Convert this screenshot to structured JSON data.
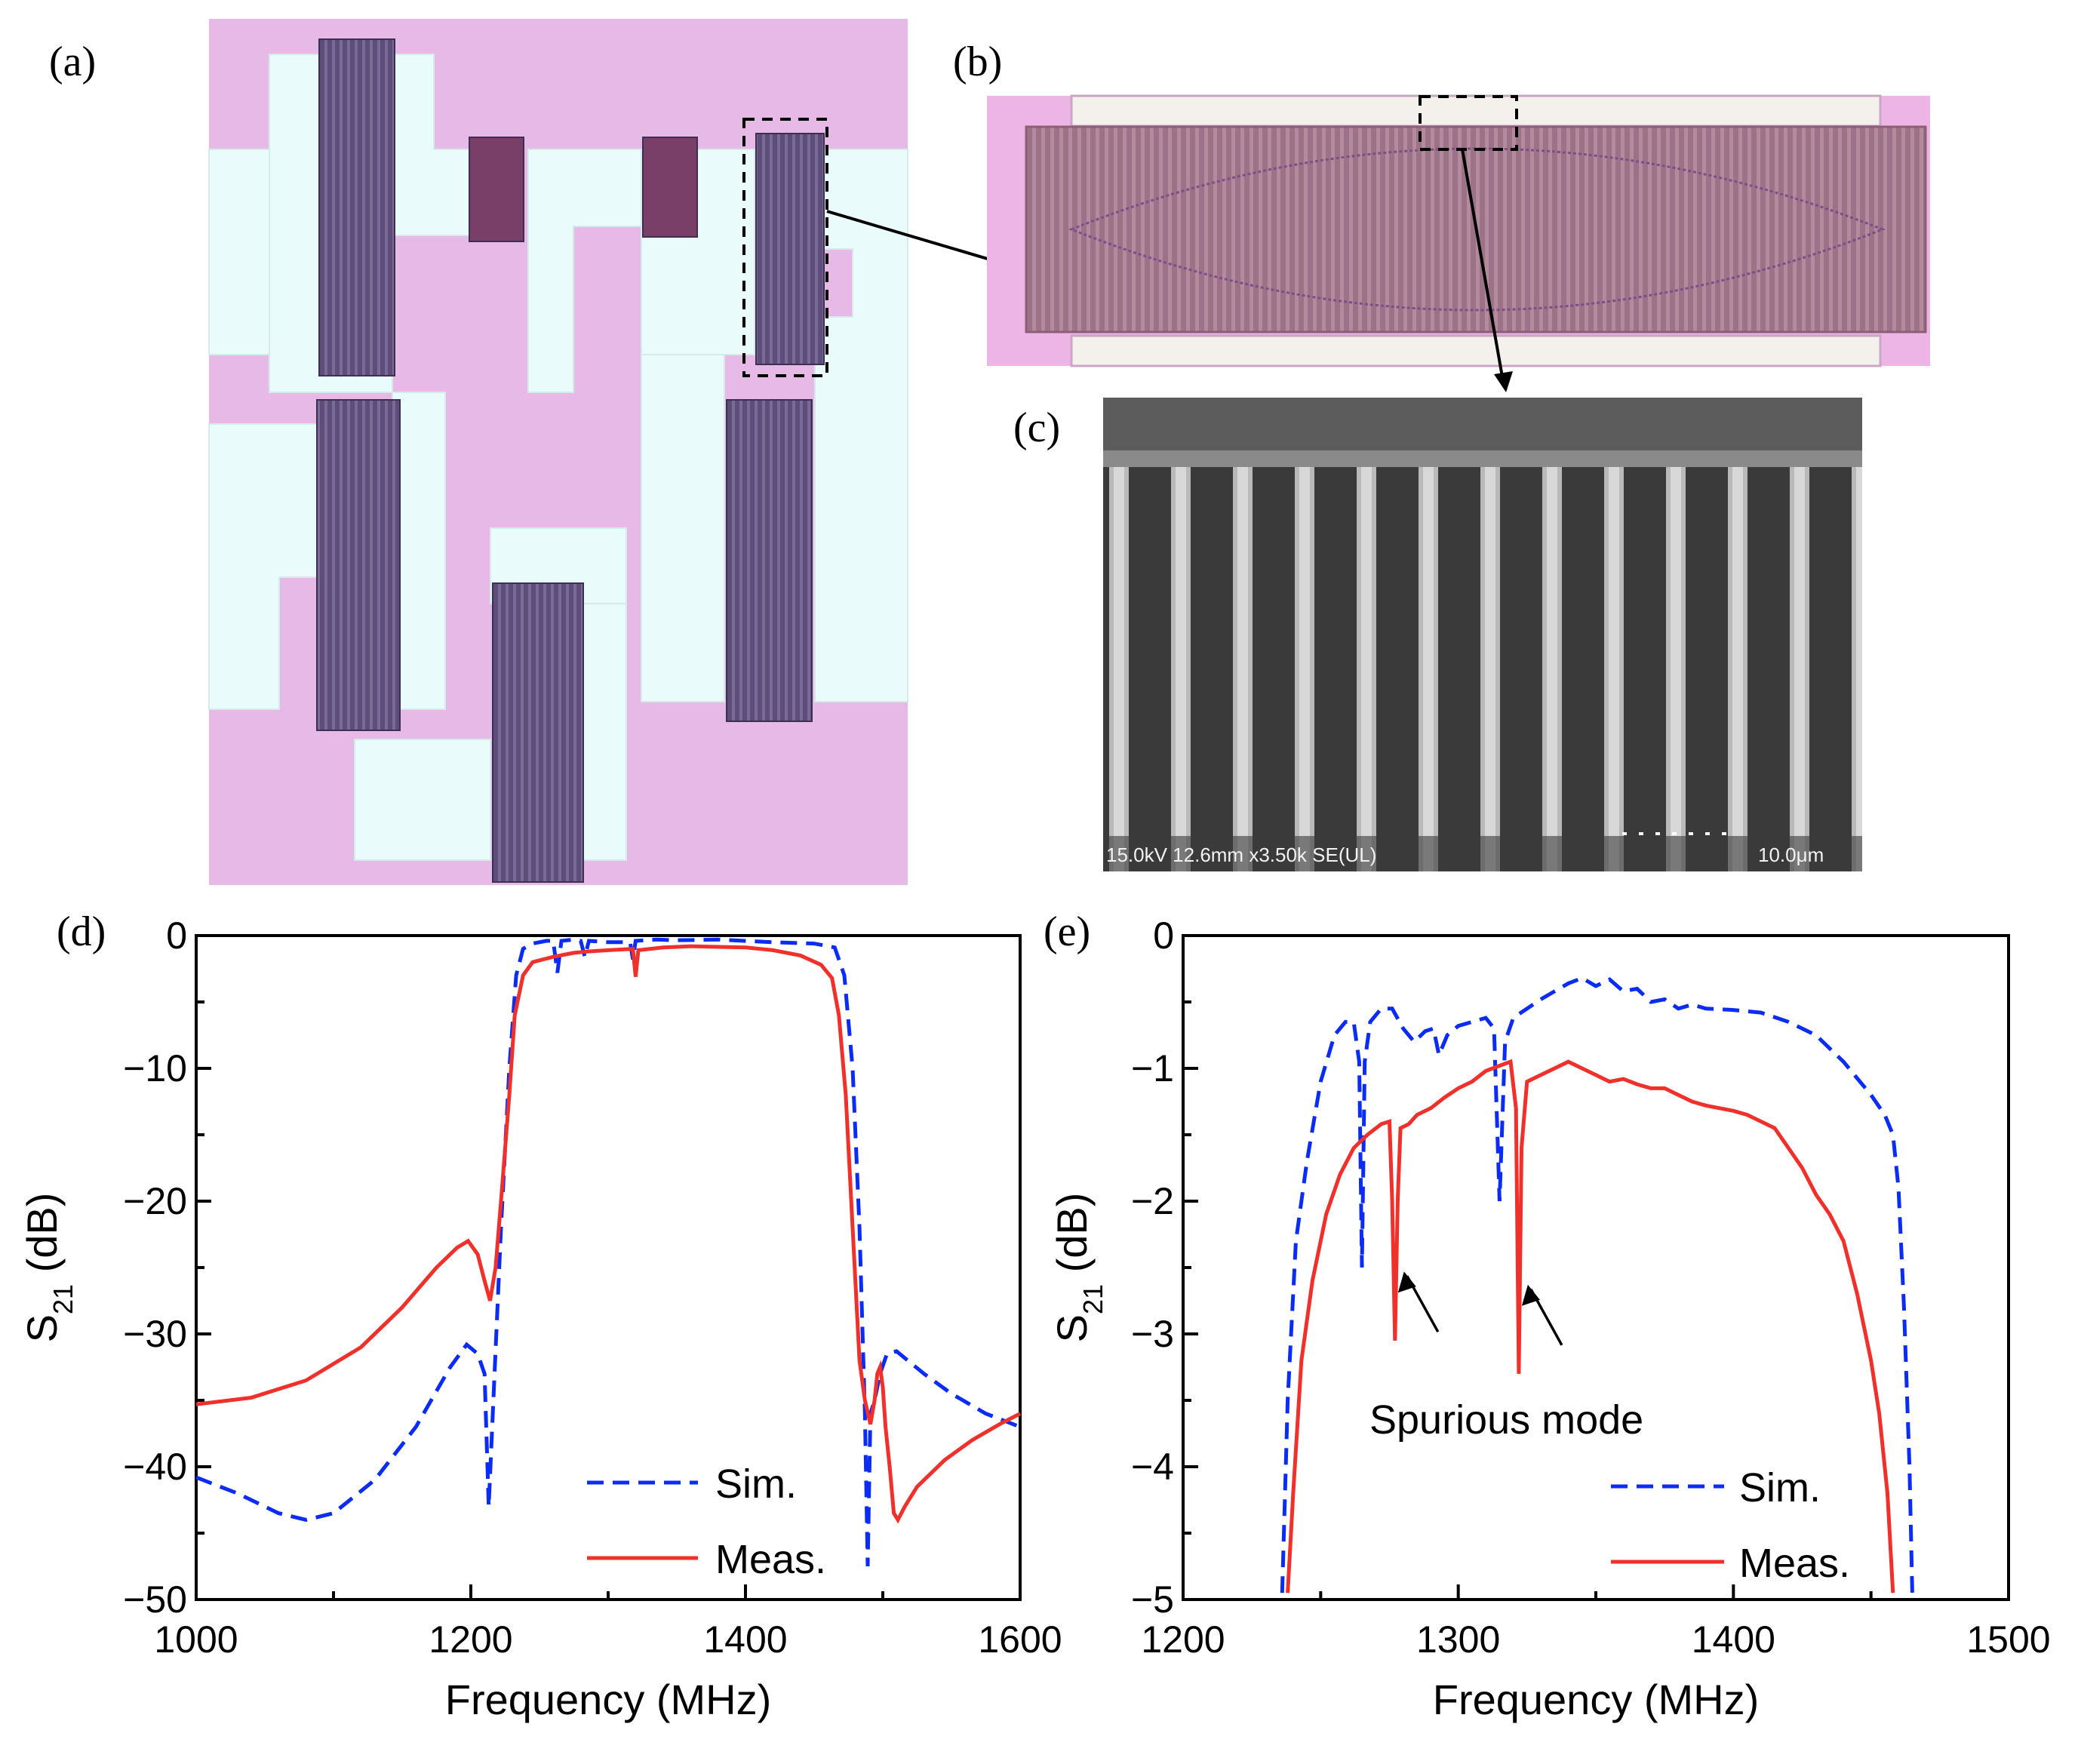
{
  "panels": {
    "a": "(a)",
    "b": "(b)",
    "c": "(c)",
    "d": "(d)",
    "e": "(e)"
  },
  "sem": {
    "info": "15.0kV 12.6mm x3.50k SE(UL)",
    "scale": "10.0μm"
  },
  "colors": {
    "sim": "#0a2cf5",
    "meas": "#f0302a",
    "chip_bg": "#e6b8e4",
    "pad": "#e9fbfb",
    "resonator": "#5d4a78"
  },
  "chart_data": [
    {
      "id": "d",
      "type": "line",
      "xlabel": "Frequency (MHz)",
      "ylabel_main": "S",
      "ylabel_sub": "21",
      "ylabel_unit": " (dB)",
      "xlim": [
        1000,
        1600
      ],
      "ylim": [
        -50,
        0
      ],
      "xticks": [
        1000,
        1200,
        1400,
        1600
      ],
      "xtick_labels": [
        "1000",
        "1200",
        "1400",
        "1600"
      ],
      "yticks": [
        0,
        -10,
        -20,
        -30,
        -40,
        -50
      ],
      "ytick_labels": [
        "0",
        "−10",
        "−20",
        "−30",
        "−40",
        "−50"
      ],
      "legend_position": "bottom-right",
      "series": [
        {
          "name": "Sim.",
          "style": "dashed",
          "color": "#0a2cf5",
          "points": [
            [
              1000,
              -40.8
            ],
            [
              1030,
              -42
            ],
            [
              1060,
              -43.5
            ],
            [
              1080,
              -44
            ],
            [
              1100,
              -43.5
            ],
            [
              1130,
              -41
            ],
            [
              1160,
              -37
            ],
            [
              1185,
              -32.5
            ],
            [
              1197,
              -30.8
            ],
            [
              1205,
              -31.5
            ],
            [
              1210,
              -33
            ],
            [
              1213,
              -43
            ],
            [
              1216,
              -36
            ],
            [
              1222,
              -22
            ],
            [
              1228,
              -10
            ],
            [
              1233,
              -3
            ],
            [
              1238,
              -1
            ],
            [
              1245,
              -0.6
            ],
            [
              1255,
              -0.4
            ],
            [
              1260,
              -0.4
            ],
            [
              1263,
              -2.8
            ],
            [
              1266,
              -0.4
            ],
            [
              1275,
              -0.3
            ],
            [
              1280,
              -0.4
            ],
            [
              1283,
              -1.6
            ],
            [
              1286,
              -0.4
            ],
            [
              1300,
              -0.5
            ],
            [
              1316,
              -0.5
            ],
            [
              1318,
              -1.8
            ],
            [
              1320,
              -0.4
            ],
            [
              1335,
              -0.3
            ],
            [
              1350,
              -0.35
            ],
            [
              1380,
              -0.3
            ],
            [
              1420,
              -0.5
            ],
            [
              1450,
              -0.6
            ],
            [
              1465,
              -0.9
            ],
            [
              1472,
              -3
            ],
            [
              1478,
              -10
            ],
            [
              1483,
              -22
            ],
            [
              1487,
              -36
            ],
            [
              1489,
              -47.5
            ],
            [
              1491,
              -36
            ],
            [
              1494,
              -35
            ],
            [
              1498,
              -33
            ],
            [
              1503,
              -31.5
            ],
            [
              1510,
              -31.3
            ],
            [
              1530,
              -33
            ],
            [
              1550,
              -34.5
            ],
            [
              1575,
              -36
            ],
            [
              1600,
              -37
            ]
          ]
        },
        {
          "name": "Meas.",
          "style": "solid",
          "color": "#f0302a",
          "points": [
            [
              1000,
              -35.3
            ],
            [
              1040,
              -34.8
            ],
            [
              1080,
              -33.5
            ],
            [
              1120,
              -31
            ],
            [
              1150,
              -28
            ],
            [
              1175,
              -25
            ],
            [
              1190,
              -23.5
            ],
            [
              1198,
              -23
            ],
            [
              1205,
              -24
            ],
            [
              1210,
              -26
            ],
            [
              1214,
              -27.5
            ],
            [
              1218,
              -25
            ],
            [
              1222,
              -20
            ],
            [
              1228,
              -12
            ],
            [
              1232,
              -6
            ],
            [
              1238,
              -3
            ],
            [
              1245,
              -2
            ],
            [
              1260,
              -1.6
            ],
            [
              1275,
              -1.3
            ],
            [
              1285,
              -1.2
            ],
            [
              1300,
              -1.1
            ],
            [
              1318,
              -1.0
            ],
            [
              1320,
              -3.1
            ],
            [
              1322,
              -1.1
            ],
            [
              1340,
              -0.9
            ],
            [
              1360,
              -0.8
            ],
            [
              1380,
              -0.85
            ],
            [
              1400,
              -0.9
            ],
            [
              1420,
              -1.1
            ],
            [
              1440,
              -1.5
            ],
            [
              1455,
              -2.2
            ],
            [
              1463,
              -3.2
            ],
            [
              1468,
              -6
            ],
            [
              1473,
              -12
            ],
            [
              1478,
              -22
            ],
            [
              1483,
              -32
            ],
            [
              1487,
              -35
            ],
            [
              1491,
              -36.8
            ],
            [
              1494,
              -35
            ],
            [
              1496,
              -33
            ],
            [
              1498,
              -32.5
            ],
            [
              1500,
              -34
            ],
            [
              1502,
              -37
            ],
            [
              1505,
              -40
            ],
            [
              1508,
              -43.5
            ],
            [
              1511,
              -44
            ],
            [
              1516,
              -43
            ],
            [
              1525,
              -41.5
            ],
            [
              1545,
              -39.5
            ],
            [
              1565,
              -38
            ],
            [
              1585,
              -36.8
            ],
            [
              1600,
              -36
            ]
          ]
        }
      ]
    },
    {
      "id": "e",
      "type": "line",
      "xlabel": "Frequency (MHz)",
      "ylabel_main": "S",
      "ylabel_sub": "21",
      "ylabel_unit": " (dB)",
      "xlim": [
        1200,
        1500
      ],
      "ylim": [
        -5,
        0
      ],
      "xticks": [
        1200,
        1300,
        1400,
        1500
      ],
      "xtick_labels": [
        "1200",
        "1300",
        "1400",
        "1500"
      ],
      "yticks": [
        0,
        -1,
        -2,
        -3,
        -4,
        -5
      ],
      "ytick_labels": [
        "0",
        "−1",
        "−2",
        "−3",
        "−4",
        "−5"
      ],
      "legend_position": "bottom-right",
      "annotation": "Spurious mode",
      "annotation_arrows_at": [
        [
          1277,
          -2.7
        ],
        [
          1322,
          -2.8
        ]
      ],
      "series": [
        {
          "name": "Sim.",
          "style": "dashed",
          "color": "#0a2cf5",
          "points": [
            [
              1236,
              -4.95
            ],
            [
              1238,
              -3.5
            ],
            [
              1241,
              -2.3
            ],
            [
              1245,
              -1.7
            ],
            [
              1250,
              -1.1
            ],
            [
              1255,
              -0.75
            ],
            [
              1259,
              -0.65
            ],
            [
              1262,
              -0.65
            ],
            [
              1264,
              -0.95
            ],
            [
              1265,
              -2.5
            ],
            [
              1266,
              -0.95
            ],
            [
              1268,
              -0.65
            ],
            [
              1272,
              -0.55
            ],
            [
              1276,
              -0.55
            ],
            [
              1280,
              -0.7
            ],
            [
              1284,
              -0.8
            ],
            [
              1288,
              -0.72
            ],
            [
              1291,
              -0.7
            ],
            [
              1293,
              -0.9
            ],
            [
              1296,
              -0.75
            ],
            [
              1300,
              -0.68
            ],
            [
              1305,
              -0.65
            ],
            [
              1310,
              -0.62
            ],
            [
              1313,
              -0.7
            ],
            [
              1315,
              -2.0
            ],
            [
              1317,
              -0.8
            ],
            [
              1320,
              -0.62
            ],
            [
              1325,
              -0.55
            ],
            [
              1330,
              -0.48
            ],
            [
              1335,
              -0.42
            ],
            [
              1340,
              -0.36
            ],
            [
              1345,
              -0.32
            ],
            [
              1350,
              -0.38
            ],
            [
              1355,
              -0.33
            ],
            [
              1360,
              -0.42
            ],
            [
              1365,
              -0.4
            ],
            [
              1370,
              -0.5
            ],
            [
              1375,
              -0.48
            ],
            [
              1380,
              -0.55
            ],
            [
              1385,
              -0.52
            ],
            [
              1390,
              -0.55
            ],
            [
              1400,
              -0.56
            ],
            [
              1410,
              -0.58
            ],
            [
              1420,
              -0.65
            ],
            [
              1430,
              -0.75
            ],
            [
              1440,
              -0.95
            ],
            [
              1450,
              -1.2
            ],
            [
              1455,
              -1.35
            ],
            [
              1458,
              -1.5
            ],
            [
              1460,
              -1.9
            ],
            [
              1462,
              -2.8
            ],
            [
              1464,
              -4
            ],
            [
              1465,
              -4.95
            ]
          ]
        },
        {
          "name": "Meas.",
          "style": "solid",
          "color": "#f0302a",
          "points": [
            [
              1238,
              -4.95
            ],
            [
              1240,
              -4.2
            ],
            [
              1243,
              -3.2
            ],
            [
              1247,
              -2.6
            ],
            [
              1252,
              -2.1
            ],
            [
              1257,
              -1.8
            ],
            [
              1262,
              -1.6
            ],
            [
              1267,
              -1.5
            ],
            [
              1272,
              -1.42
            ],
            [
              1275,
              -1.4
            ],
            [
              1276,
              -2.0
            ],
            [
              1277,
              -3.05
            ],
            [
              1278,
              -2.0
            ],
            [
              1279,
              -1.45
            ],
            [
              1282,
              -1.42
            ],
            [
              1285,
              -1.35
            ],
            [
              1290,
              -1.3
            ],
            [
              1295,
              -1.22
            ],
            [
              1300,
              -1.15
            ],
            [
              1305,
              -1.1
            ],
            [
              1310,
              -1.02
            ],
            [
              1315,
              -0.98
            ],
            [
              1319,
              -0.95
            ],
            [
              1321,
              -1.3
            ],
            [
              1322,
              -3.3
            ],
            [
              1323,
              -1.6
            ],
            [
              1325,
              -1.1
            ],
            [
              1330,
              -1.05
            ],
            [
              1335,
              -1.0
            ],
            [
              1340,
              -0.95
            ],
            [
              1345,
              -1.0
            ],
            [
              1350,
              -1.05
            ],
            [
              1355,
              -1.1
            ],
            [
              1360,
              -1.08
            ],
            [
              1365,
              -1.12
            ],
            [
              1370,
              -1.15
            ],
            [
              1375,
              -1.15
            ],
            [
              1380,
              -1.2
            ],
            [
              1385,
              -1.25
            ],
            [
              1390,
              -1.28
            ],
            [
              1395,
              -1.3
            ],
            [
              1400,
              -1.32
            ],
            [
              1405,
              -1.35
            ],
            [
              1410,
              -1.4
            ],
            [
              1415,
              -1.45
            ],
            [
              1420,
              -1.6
            ],
            [
              1425,
              -1.75
            ],
            [
              1430,
              -1.95
            ],
            [
              1435,
              -2.1
            ],
            [
              1440,
              -2.3
            ],
            [
              1445,
              -2.7
            ],
            [
              1450,
              -3.2
            ],
            [
              1453,
              -3.6
            ],
            [
              1456,
              -4.2
            ],
            [
              1458,
              -4.95
            ]
          ]
        }
      ]
    }
  ]
}
